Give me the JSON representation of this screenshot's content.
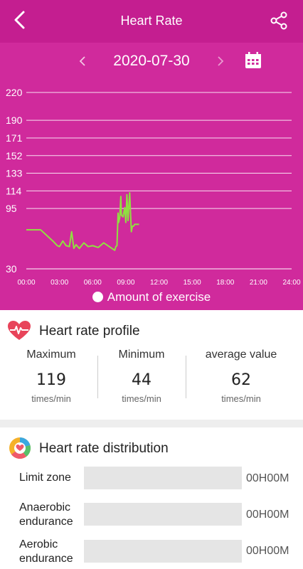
{
  "header": {
    "title": "Heart Rate",
    "back_icon": "chevron-left-icon",
    "share_icon": "share-icon"
  },
  "date_nav": {
    "date": "2020-07-30",
    "prev_icon": "chevron-left-icon",
    "next_icon": "chevron-right-icon",
    "calendar_icon": "calendar-icon"
  },
  "colors": {
    "header_bg": "#d02a9c",
    "status_bg": "#c41e90",
    "heart_line": "#8fe040",
    "exercise": "#ffffff"
  },
  "chart_data": {
    "type": "line",
    "y_ticks": [
      "220",
      "190",
      "171",
      "152",
      "133",
      "114",
      "95",
      "30"
    ],
    "x_ticks": [
      "00:00",
      "03:00",
      "06:00",
      "09:00",
      "12:00",
      "15:00",
      "18:00",
      "21:00",
      "24:00"
    ],
    "ylim": [
      30,
      220
    ],
    "grid": true,
    "legend_position": "bottom",
    "legend": "Amount of exercise",
    "series": [
      {
        "name": "",
        "x_hours": [
          0,
          1.3,
          2.4,
          2.8,
          3.0,
          3.3,
          3.6,
          3.9,
          4.1,
          4.3,
          4.5,
          4.8,
          5.2,
          5.6,
          6.0,
          6.5,
          7.0,
          7.5,
          8.0,
          8.1,
          8.2,
          8.3,
          8.35,
          8.45,
          8.55,
          8.6,
          8.75,
          8.9,
          9.0,
          9.1,
          9.2,
          9.35,
          9.5,
          9.6,
          9.7,
          9.8,
          10.0,
          10.2
        ],
        "bpm": [
          72,
          72,
          60,
          55,
          54,
          60,
          55,
          54,
          70,
          52,
          56,
          52,
          58,
          54,
          55,
          53,
          58,
          54,
          50,
          54,
          55,
          90,
          80,
          85,
          108,
          88,
          86,
          96,
          80,
          110,
          82,
          112,
          70,
          76,
          76,
          78,
          78,
          78
        ]
      }
    ]
  },
  "profile": {
    "title": "Heart rate profile",
    "icon": "heart-pulse-icon",
    "stats": [
      {
        "label": "Maximum",
        "value": "119",
        "unit": "times/min"
      },
      {
        "label": "Minimum",
        "value": "44",
        "unit": "times/min"
      },
      {
        "label": "average value",
        "value": "62",
        "unit": "times/min"
      }
    ]
  },
  "distribution": {
    "title": "Heart rate distribution",
    "icon": "pie-chart-icon",
    "zones": [
      {
        "label": "Limit zone",
        "value": "00H00M",
        "fraction": 0
      },
      {
        "label": "Anaerobic endurance",
        "value": "00H00M",
        "fraction": 0
      },
      {
        "label": "Aerobic endurance",
        "value": "00H00M",
        "fraction": 0
      }
    ]
  }
}
